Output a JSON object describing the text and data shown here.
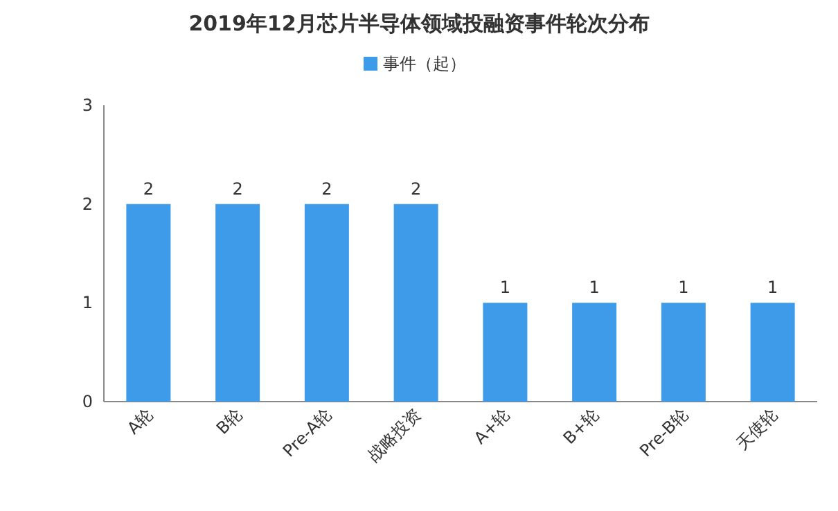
{
  "chart_data": {
    "type": "bar",
    "title": "2019年12月芯片半导体领域投融资事件轮次分布",
    "categories": [
      "A轮",
      "B轮",
      "Pre-A轮",
      "战略投资",
      "A+轮",
      "B+轮",
      "Pre-B轮",
      "天使轮"
    ],
    "series": [
      {
        "name": "事件（起）",
        "color": "#3d9be9",
        "values": [
          2,
          2,
          2,
          2,
          1,
          1,
          1,
          1
        ]
      }
    ],
    "ylim": [
      0,
      3
    ],
    "yticks": [
      0,
      1,
      2,
      3
    ],
    "grid": false,
    "legend": "top",
    "data_labels": true
  }
}
